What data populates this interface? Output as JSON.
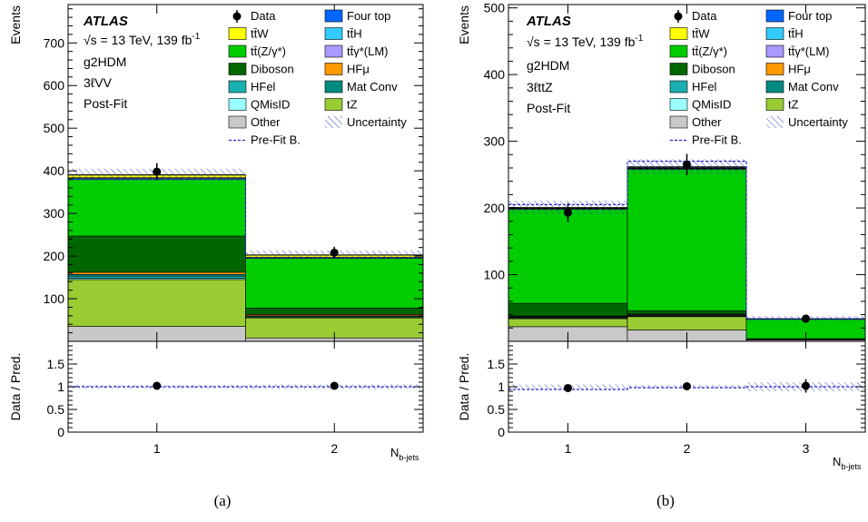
{
  "panels": [
    {
      "caption": "(a)",
      "atlas": "ATLAS",
      "energy": "√s = 13 TeV, 139 fb",
      "energy_exp": "-1",
      "model": "g2HDM",
      "region": "3ℓVV",
      "fit": "Post-Fit",
      "ylabel": "Events",
      "ratio_ylabel": "Data / Pred.",
      "xlabel": "N",
      "xlabel_sub": "b-jets",
      "yticks": [
        "100",
        "200",
        "300",
        "400",
        "500",
        "600",
        "700"
      ],
      "ratio_yticks": [
        "0",
        "0.5",
        "1",
        "1.5"
      ],
      "bin_labels": [
        "1",
        "2"
      ]
    },
    {
      "caption": "(b)",
      "atlas": "ATLAS",
      "energy": "√s = 13 TeV, 139 fb",
      "energy_exp": "-1",
      "model": "g2HDM",
      "region": "3ℓttZ",
      "fit": "Post-Fit",
      "ylabel": "Events",
      "ratio_ylabel": "Data / Pred.",
      "xlabel": "N",
      "xlabel_sub": "b-jets",
      "yticks": [
        "100",
        "200",
        "300",
        "400",
        "500"
      ],
      "ratio_yticks": [
        "0",
        "0.5",
        "1",
        "1.5"
      ],
      "bin_labels": [
        "1",
        "2",
        "3"
      ]
    }
  ],
  "legend": {
    "left": [
      {
        "label": "Data",
        "kind": "data"
      },
      {
        "label": "tt̄W",
        "kind": "box",
        "color": "#ffff00"
      },
      {
        "label": "tt̄(Z/γ*)",
        "kind": "box",
        "color": "#00cc00"
      },
      {
        "label": "Diboson",
        "kind": "box",
        "color": "#006600"
      },
      {
        "label": "HFel",
        "kind": "box",
        "color": "#1ab0b0"
      },
      {
        "label": "QMisID",
        "kind": "box",
        "color": "#99ffff"
      },
      {
        "label": "Other",
        "kind": "box",
        "color": "#c8c8c8"
      },
      {
        "label": "Pre-Fit B.",
        "kind": "dash"
      }
    ],
    "right": [
      {
        "label": "Four top",
        "kind": "box",
        "color": "#0066ff"
      },
      {
        "label": "tt̄H",
        "kind": "box",
        "color": "#33ccff"
      },
      {
        "label": "tt̄γ*(LM)",
        "kind": "box",
        "color": "#aa99ff"
      },
      {
        "label": "HFμ",
        "kind": "box",
        "color": "#ff9900"
      },
      {
        "label": "Mat Conv",
        "kind": "box",
        "color": "#008b80"
      },
      {
        "label": "tZ",
        "kind": "box",
        "color": "#99cc33"
      },
      {
        "label": "Uncertainty",
        "kind": "hatch"
      }
    ]
  },
  "chart_data": [
    {
      "type": "bar",
      "stacked": true,
      "title": "",
      "xlabel": "N_b-jets",
      "ylabel": "Events",
      "ylim": [
        0,
        790
      ],
      "categories": [
        "1",
        "2"
      ],
      "series": [
        {
          "name": "Other",
          "color": "#c8c8c8",
          "values": [
            35,
            8
          ]
        },
        {
          "name": "tZ",
          "color": "#99cc33",
          "values": [
            110,
            47
          ]
        },
        {
          "name": "QMisID",
          "color": "#99ffff",
          "values": [
            3,
            1
          ]
        },
        {
          "name": "HFel",
          "color": "#1ab0b0",
          "values": [
            5,
            2
          ]
        },
        {
          "name": "Mat Conv",
          "color": "#008b80",
          "values": [
            4,
            2
          ]
        },
        {
          "name": "HFμ",
          "color": "#ff9900",
          "values": [
            5,
            3
          ]
        },
        {
          "name": "Diboson",
          "color": "#006600",
          "values": [
            85,
            15
          ]
        },
        {
          "name": "tt̄(Z/γ*)",
          "color": "#00cc00",
          "values": [
            133,
            117
          ]
        },
        {
          "name": "tt̄γ*(LM)",
          "color": "#aa99ff",
          "values": [
            2,
            1
          ]
        },
        {
          "name": "tt̄H",
          "color": "#33ccff",
          "values": [
            2,
            1
          ]
        },
        {
          "name": "tt̄W",
          "color": "#ffff00",
          "values": [
            6,
            5
          ]
        },
        {
          "name": "Four top",
          "color": "#0066ff",
          "values": [
            1,
            1
          ]
        }
      ],
      "data": [
        398,
        208
      ],
      "data_err": [
        20,
        14
      ],
      "prefit": [
        380,
        196
      ],
      "uncertainty": [
        14,
        10
      ],
      "ratio": {
        "ylim": [
          0,
          2
        ],
        "values": [
          1.02,
          1.02
        ],
        "errors": [
          0.05,
          0.07
        ],
        "band": [
          0.04,
          0.05
        ],
        "prefit": [
          1.0,
          1.0
        ]
      }
    },
    {
      "type": "bar",
      "stacked": true,
      "title": "",
      "xlabel": "N_b-jets",
      "ylabel": "Events",
      "ylim": [
        0,
        505
      ],
      "categories": [
        "1",
        "2",
        "3"
      ],
      "series": [
        {
          "name": "Other",
          "color": "#c8c8c8",
          "values": [
            22,
            17,
            2
          ]
        },
        {
          "name": "tZ",
          "color": "#99cc33",
          "values": [
            12,
            20,
            1
          ]
        },
        {
          "name": "QMisID",
          "color": "#99ffff",
          "values": [
            1,
            1,
            0
          ]
        },
        {
          "name": "HFel",
          "color": "#1ab0b0",
          "values": [
            1,
            1,
            0
          ]
        },
        {
          "name": "Mat Conv",
          "color": "#008b80",
          "values": [
            1,
            1,
            0
          ]
        },
        {
          "name": "HFμ",
          "color": "#ff9900",
          "values": [
            1,
            1,
            0
          ]
        },
        {
          "name": "Diboson",
          "color": "#006600",
          "values": [
            19,
            5,
            1
          ]
        },
        {
          "name": "tt̄(Z/γ*)",
          "color": "#00cc00",
          "values": [
            141,
            212,
            29
          ]
        },
        {
          "name": "tt̄γ*(LM)",
          "color": "#aa99ff",
          "values": [
            1,
            1,
            0
          ]
        },
        {
          "name": "tt̄H",
          "color": "#33ccff",
          "values": [
            1,
            1,
            0
          ]
        },
        {
          "name": "tt̄W",
          "color": "#ffff00",
          "values": [
            1,
            1,
            0
          ]
        },
        {
          "name": "Four top",
          "color": "#0066ff",
          "values": [
            0,
            1,
            1
          ]
        }
      ],
      "data": [
        193,
        265,
        34
      ],
      "data_err": [
        14,
        16,
        6
      ],
      "prefit": [
        205,
        270,
        34
      ],
      "uncertainty": [
        10,
        11,
        4
      ],
      "ratio": {
        "ylim": [
          0,
          2
        ],
        "values": [
          0.97,
          1.01,
          1.02
        ],
        "errors": [
          0.07,
          0.06,
          0.15
        ],
        "band": [
          0.05,
          0.04,
          0.1
        ],
        "prefit": [
          0.94,
          0.98,
          1.0
        ]
      }
    }
  ]
}
